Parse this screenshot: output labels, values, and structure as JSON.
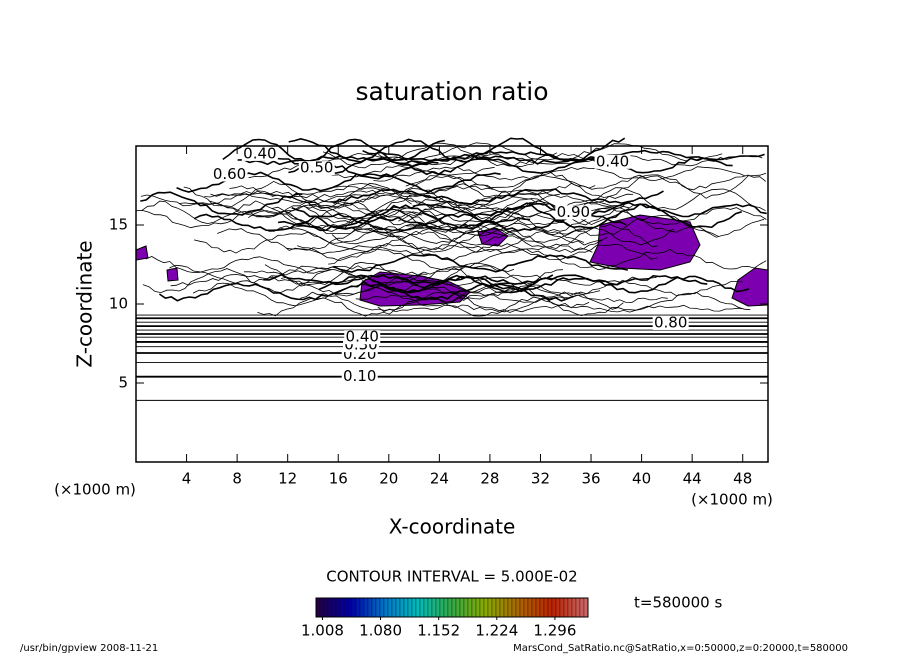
{
  "chart_data": {
    "type": "contour",
    "title": "saturation ratio",
    "x_label": "X-coordinate",
    "y_label": "Z-coordinate",
    "x_unit": "(×1000 m)",
    "y_unit": "(×1000 m)",
    "xlim": [
      0,
      50
    ],
    "ylim": [
      0,
      20
    ],
    "xticks": [
      4,
      8,
      12,
      16,
      20,
      24,
      28,
      32,
      36,
      40,
      44,
      48
    ],
    "yticks": [
      5,
      10,
      15
    ],
    "contours": [
      {
        "level": 0.05,
        "z": 3.9
      },
      {
        "level": 0.1,
        "z": 5.4
      },
      {
        "level": 0.15,
        "z": 6.3
      },
      {
        "level": 0.2,
        "z": 6.9
      },
      {
        "level": 0.25,
        "z": 7.3
      },
      {
        "level": 0.3,
        "z": 7.6
      },
      {
        "level": 0.35,
        "z": 7.9
      },
      {
        "level": 0.4,
        "z": 8.1
      },
      {
        "level": 0.45,
        "z": 8.35
      },
      {
        "level": 0.5,
        "z": 8.6
      },
      {
        "level": 0.55,
        "z": 8.85
      },
      {
        "level": 0.6,
        "z": 9.1
      },
      {
        "level": 0.65,
        "z": 9.3
      }
    ],
    "contour_labels": [
      {
        "label": "0.10",
        "x": 17.7,
        "z": 5.4
      },
      {
        "label": "0.20",
        "x": 17.7,
        "z": 6.8
      },
      {
        "label": "0.30",
        "x": 17.8,
        "z": 7.4
      },
      {
        "label": "0.40",
        "x": 17.9,
        "z": 7.9
      },
      {
        "label": "0.40",
        "x": 9.8,
        "z": 19.5
      },
      {
        "label": "0.50",
        "x": 14.3,
        "z": 18.6
      },
      {
        "label": "0.60",
        "x": 7.4,
        "z": 18.2
      },
      {
        "label": "0.40",
        "x": 37.7,
        "z": 19.0
      },
      {
        "label": "0.90",
        "x": 34.6,
        "z": 15.8
      },
      {
        "label": "0.80",
        "x": 42.3,
        "z": 8.8
      }
    ],
    "contour_interval": "CONTOUR INTERVAL = 5.000E-02",
    "time_label": "t=580000 s",
    "colorbar": {
      "lim": [
        1.0,
        1.337
      ],
      "colors": [
        "#220044",
        "#0000aa",
        "#0077cc",
        "#00bbbb",
        "#33aa44",
        "#88aa00",
        "#aa6600",
        "#bb2200",
        "#cc6666"
      ],
      "ticks": [
        1.008,
        {
          "value": 1.08,
          "label": "1.080"
        },
        1.152,
        1.224,
        1.296
      ]
    },
    "fill_color": "#7d00b0",
    "footer_left": "/usr/bin/gpview   2008-11-21",
    "footer_right": "MarsCond_SatRatio.nc@SatRatio,x=0:50000,z=0:20000,t=580000"
  }
}
